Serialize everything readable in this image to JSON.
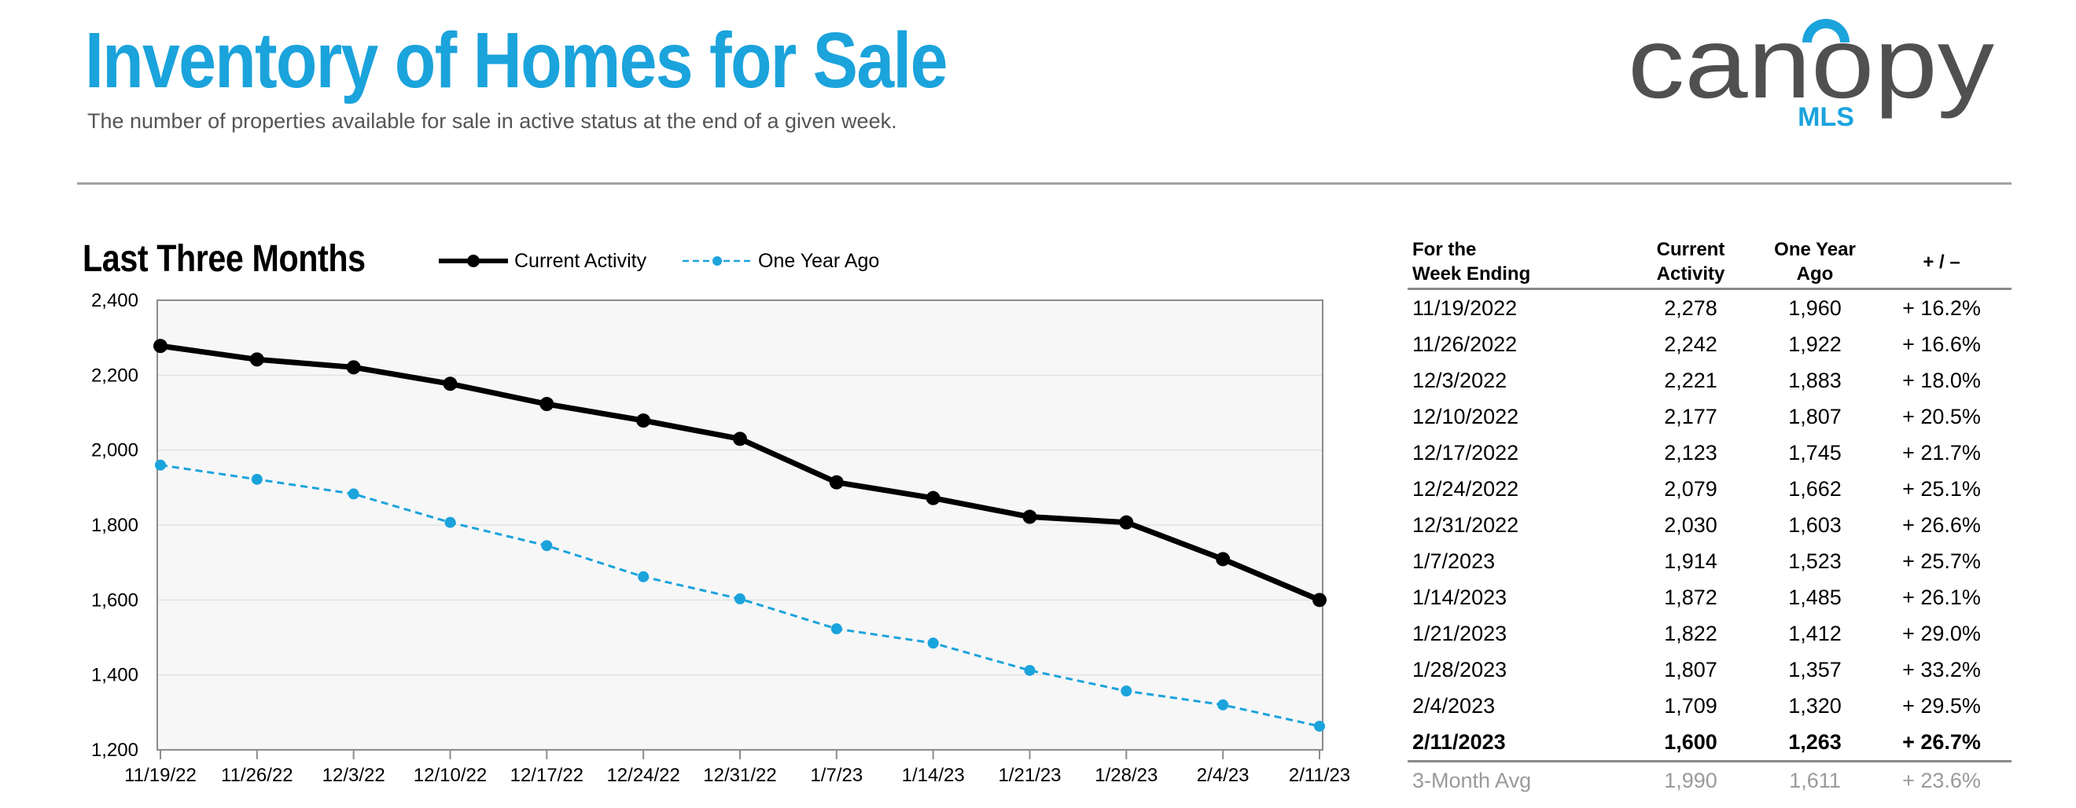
{
  "header": {
    "title": "Inventory of Homes for Sale",
    "subtitle": "The number of properties available for sale in active status at the end of a given week."
  },
  "logo": {
    "name": "canopy",
    "sub": "MLS",
    "color_dark": "#505050",
    "color_accent": "#1ba3dc"
  },
  "colors": {
    "title": "#1ba3dc",
    "current": "#000000",
    "year_ago": "#1ba3dc",
    "plot_bg": "#f7f7f7",
    "grid": "#e2e2e2"
  },
  "chart_data": {
    "type": "line",
    "title": "Last Three Months",
    "xlabel": "",
    "ylabel": "",
    "ylim": [
      1200,
      2400
    ],
    "yticks": [
      1200,
      1400,
      1600,
      1800,
      2000,
      2200,
      2400
    ],
    "ytick_labels": [
      "1,200",
      "1,400",
      "1,600",
      "1,800",
      "2,000",
      "2,200",
      "2,400"
    ],
    "grid": true,
    "legend": "top",
    "categories": [
      "11/19/22",
      "11/26/22",
      "12/3/22",
      "12/10/22",
      "12/17/22",
      "12/24/22",
      "12/31/22",
      "1/7/23",
      "1/14/23",
      "1/21/23",
      "1/28/23",
      "2/4/23",
      "2/11/23"
    ],
    "series": [
      {
        "name": "Current Activity",
        "style": "solid",
        "values": [
          2278,
          2242,
          2221,
          2177,
          2123,
          2079,
          2030,
          1914,
          1872,
          1822,
          1807,
          1709,
          1600
        ]
      },
      {
        "name": "One Year Ago",
        "style": "dashed",
        "values": [
          1960,
          1922,
          1883,
          1807,
          1745,
          1662,
          1603,
          1523,
          1485,
          1412,
          1357,
          1320,
          1263
        ]
      }
    ]
  },
  "table": {
    "headers": [
      "For the\nWeek Ending",
      "Current\nActivity",
      "One Year\nAgo",
      "+ / –"
    ],
    "rows": [
      [
        "11/19/2022",
        "2,278",
        "1,960",
        "+ 16.2%"
      ],
      [
        "11/26/2022",
        "2,242",
        "1,922",
        "+ 16.6%"
      ],
      [
        "12/3/2022",
        "2,221",
        "1,883",
        "+ 18.0%"
      ],
      [
        "12/10/2022",
        "2,177",
        "1,807",
        "+ 20.5%"
      ],
      [
        "12/17/2022",
        "2,123",
        "1,745",
        "+ 21.7%"
      ],
      [
        "12/24/2022",
        "2,079",
        "1,662",
        "+ 25.1%"
      ],
      [
        "12/31/2022",
        "2,030",
        "1,603",
        "+ 26.6%"
      ],
      [
        "1/7/2023",
        "1,914",
        "1,523",
        "+ 25.7%"
      ],
      [
        "1/14/2023",
        "1,872",
        "1,485",
        "+ 26.1%"
      ],
      [
        "1/21/2023",
        "1,822",
        "1,412",
        "+ 29.0%"
      ],
      [
        "1/28/2023",
        "1,807",
        "1,357",
        "+ 33.2%"
      ],
      [
        "2/4/2023",
        "1,709",
        "1,320",
        "+ 29.5%"
      ],
      [
        "2/11/2023",
        "1,600",
        "1,263",
        "+ 26.7%"
      ]
    ],
    "avg_row": [
      "3-Month Avg",
      "1,990",
      "1,611",
      "+ 23.6%"
    ]
  }
}
